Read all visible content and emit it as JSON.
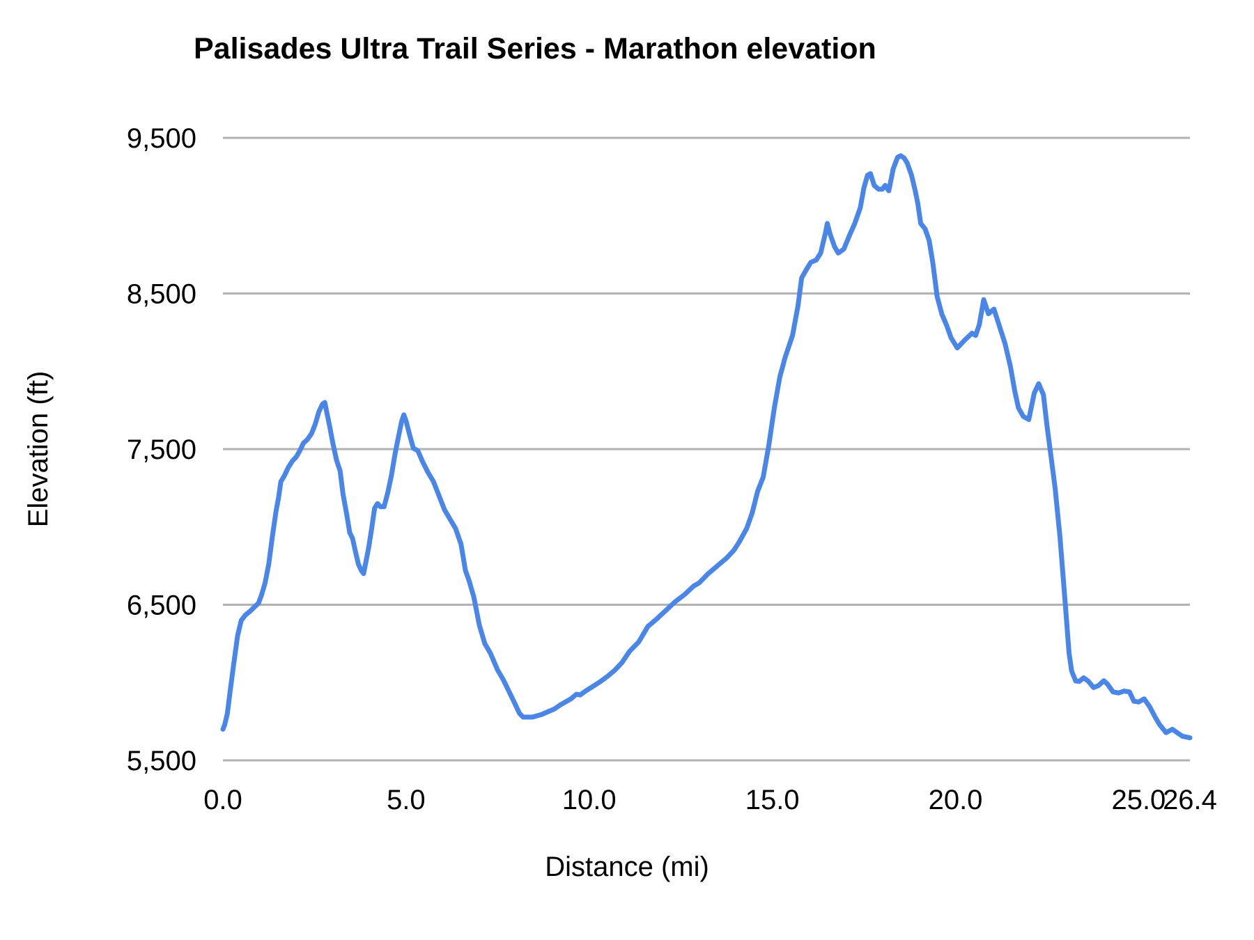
{
  "chart_data": {
    "type": "line",
    "title": "Palisades Ultra Trail Series - Marathon elevation",
    "xlabel": "Distance (mi)",
    "ylabel": "Elevation (ft)",
    "xlim": [
      0,
      26.4
    ],
    "ylim": [
      5500,
      9500
    ],
    "grid": "horizontal",
    "legend": "none",
    "colors": {
      "line": "#4a86e8",
      "gridline": "#b2b2b2",
      "text": "#000000",
      "background": "#ffffff"
    },
    "x_ticks": [
      {
        "value": 0,
        "label": "0.0"
      },
      {
        "value": 5,
        "label": "5.0"
      },
      {
        "value": 10,
        "label": "10.0"
      },
      {
        "value": 15,
        "label": "15.0"
      },
      {
        "value": 20,
        "label": "20.0"
      },
      {
        "value": 25,
        "label": "25.0"
      },
      {
        "value": 26.4,
        "label": "26.4"
      }
    ],
    "y_ticks": [
      {
        "value": 5500,
        "label": "5,500"
      },
      {
        "value": 6500,
        "label": "6,500"
      },
      {
        "value": 7500,
        "label": "7,500"
      },
      {
        "value": 8500,
        "label": "8,500"
      },
      {
        "value": 9500,
        "label": "9,500"
      }
    ],
    "series": [
      {
        "name": "Marathon elevation",
        "points": [
          [
            0.0,
            5700
          ],
          [
            0.05,
            5730
          ],
          [
            0.12,
            5800
          ],
          [
            0.2,
            5950
          ],
          [
            0.3,
            6130
          ],
          [
            0.4,
            6300
          ],
          [
            0.5,
            6400
          ],
          [
            0.62,
            6435
          ],
          [
            0.75,
            6460
          ],
          [
            0.88,
            6490
          ],
          [
            0.97,
            6510
          ],
          [
            1.05,
            6560
          ],
          [
            1.15,
            6640
          ],
          [
            1.25,
            6760
          ],
          [
            1.35,
            6940
          ],
          [
            1.45,
            7100
          ],
          [
            1.52,
            7190
          ],
          [
            1.58,
            7290
          ],
          [
            1.68,
            7330
          ],
          [
            1.78,
            7380
          ],
          [
            1.9,
            7425
          ],
          [
            2.0,
            7450
          ],
          [
            2.1,
            7490
          ],
          [
            2.2,
            7540
          ],
          [
            2.3,
            7560
          ],
          [
            2.42,
            7600
          ],
          [
            2.52,
            7660
          ],
          [
            2.62,
            7740
          ],
          [
            2.72,
            7790
          ],
          [
            2.78,
            7800
          ],
          [
            2.85,
            7720
          ],
          [
            2.92,
            7640
          ],
          [
            3.0,
            7540
          ],
          [
            3.1,
            7430
          ],
          [
            3.2,
            7360
          ],
          [
            3.28,
            7210
          ],
          [
            3.38,
            7080
          ],
          [
            3.46,
            6965
          ],
          [
            3.54,
            6925
          ],
          [
            3.62,
            6840
          ],
          [
            3.7,
            6760
          ],
          [
            3.78,
            6720
          ],
          [
            3.84,
            6700
          ],
          [
            3.9,
            6770
          ],
          [
            3.98,
            6870
          ],
          [
            4.06,
            6990
          ],
          [
            4.14,
            7120
          ],
          [
            4.22,
            7150
          ],
          [
            4.3,
            7130
          ],
          [
            4.4,
            7130
          ],
          [
            4.5,
            7220
          ],
          [
            4.6,
            7330
          ],
          [
            4.7,
            7470
          ],
          [
            4.8,
            7590
          ],
          [
            4.88,
            7680
          ],
          [
            4.94,
            7720
          ],
          [
            5.0,
            7680
          ],
          [
            5.1,
            7590
          ],
          [
            5.2,
            7505
          ],
          [
            5.32,
            7490
          ],
          [
            5.45,
            7420
          ],
          [
            5.6,
            7350
          ],
          [
            5.75,
            7290
          ],
          [
            5.9,
            7200
          ],
          [
            6.05,
            7110
          ],
          [
            6.2,
            7050
          ],
          [
            6.35,
            6990
          ],
          [
            6.5,
            6890
          ],
          [
            6.62,
            6720
          ],
          [
            6.72,
            6655
          ],
          [
            6.85,
            6550
          ],
          [
            7.0,
            6370
          ],
          [
            7.15,
            6250
          ],
          [
            7.3,
            6190
          ],
          [
            7.5,
            6080
          ],
          [
            7.65,
            6020
          ],
          [
            7.9,
            5900
          ],
          [
            8.1,
            5800
          ],
          [
            8.2,
            5778
          ],
          [
            8.45,
            5778
          ],
          [
            8.7,
            5795
          ],
          [
            8.9,
            5815
          ],
          [
            9.05,
            5830
          ],
          [
            9.2,
            5855
          ],
          [
            9.35,
            5875
          ],
          [
            9.5,
            5895
          ],
          [
            9.65,
            5925
          ],
          [
            9.75,
            5920
          ],
          [
            9.9,
            5945
          ],
          [
            10.1,
            5975
          ],
          [
            10.3,
            6005
          ],
          [
            10.5,
            6040
          ],
          [
            10.7,
            6080
          ],
          [
            10.9,
            6130
          ],
          [
            11.1,
            6200
          ],
          [
            11.35,
            6260
          ],
          [
            11.6,
            6360
          ],
          [
            11.85,
            6410
          ],
          [
            12.1,
            6465
          ],
          [
            12.35,
            6520
          ],
          [
            12.6,
            6565
          ],
          [
            12.85,
            6620
          ],
          [
            13.0,
            6640
          ],
          [
            13.25,
            6700
          ],
          [
            13.5,
            6750
          ],
          [
            13.75,
            6800
          ],
          [
            13.95,
            6850
          ],
          [
            14.1,
            6905
          ],
          [
            14.3,
            6990
          ],
          [
            14.45,
            7090
          ],
          [
            14.6,
            7230
          ],
          [
            14.75,
            7320
          ],
          [
            14.9,
            7520
          ],
          [
            15.05,
            7760
          ],
          [
            15.2,
            7960
          ],
          [
            15.35,
            8090
          ],
          [
            15.55,
            8230
          ],
          [
            15.7,
            8420
          ],
          [
            15.8,
            8600
          ],
          [
            15.92,
            8650
          ],
          [
            16.05,
            8700
          ],
          [
            16.2,
            8715
          ],
          [
            16.32,
            8760
          ],
          [
            16.45,
            8890
          ],
          [
            16.5,
            8950
          ],
          [
            16.58,
            8880
          ],
          [
            16.7,
            8800
          ],
          [
            16.8,
            8760
          ],
          [
            16.95,
            8785
          ],
          [
            17.1,
            8870
          ],
          [
            17.25,
            8950
          ],
          [
            17.4,
            9050
          ],
          [
            17.5,
            9180
          ],
          [
            17.6,
            9260
          ],
          [
            17.68,
            9270
          ],
          [
            17.78,
            9195
          ],
          [
            17.9,
            9170
          ],
          [
            18.0,
            9170
          ],
          [
            18.08,
            9195
          ],
          [
            18.18,
            9160
          ],
          [
            18.3,
            9300
          ],
          [
            18.42,
            9375
          ],
          [
            18.5,
            9385
          ],
          [
            18.6,
            9370
          ],
          [
            18.68,
            9340
          ],
          [
            18.8,
            9260
          ],
          [
            18.9,
            9160
          ],
          [
            18.97,
            9080
          ],
          [
            19.05,
            8950
          ],
          [
            19.17,
            8915
          ],
          [
            19.28,
            8840
          ],
          [
            19.38,
            8700
          ],
          [
            19.5,
            8480
          ],
          [
            19.63,
            8365
          ],
          [
            19.75,
            8300
          ],
          [
            19.88,
            8215
          ],
          [
            20.05,
            8150
          ],
          [
            20.25,
            8200
          ],
          [
            20.45,
            8245
          ],
          [
            20.55,
            8230
          ],
          [
            20.65,
            8300
          ],
          [
            20.77,
            8460
          ],
          [
            20.9,
            8370
          ],
          [
            21.05,
            8400
          ],
          [
            21.2,
            8290
          ],
          [
            21.35,
            8180
          ],
          [
            21.5,
            8030
          ],
          [
            21.62,
            7870
          ],
          [
            21.72,
            7765
          ],
          [
            21.85,
            7710
          ],
          [
            22.0,
            7690
          ],
          [
            22.15,
            7860
          ],
          [
            22.27,
            7920
          ],
          [
            22.4,
            7850
          ],
          [
            22.5,
            7645
          ],
          [
            22.62,
            7430
          ],
          [
            22.72,
            7250
          ],
          [
            22.85,
            6940
          ],
          [
            23.0,
            6500
          ],
          [
            23.1,
            6190
          ],
          [
            23.17,
            6075
          ],
          [
            23.28,
            6010
          ],
          [
            23.38,
            6008
          ],
          [
            23.5,
            6030
          ],
          [
            23.62,
            6010
          ],
          [
            23.77,
            5968
          ],
          [
            23.9,
            5980
          ],
          [
            24.05,
            6012
          ],
          [
            24.15,
            5990
          ],
          [
            24.3,
            5940
          ],
          [
            24.45,
            5933
          ],
          [
            24.6,
            5945
          ],
          [
            24.75,
            5940
          ],
          [
            24.87,
            5880
          ],
          [
            25.0,
            5875
          ],
          [
            25.15,
            5895
          ],
          [
            25.3,
            5845
          ],
          [
            25.45,
            5778
          ],
          [
            25.57,
            5730
          ],
          [
            25.75,
            5678
          ],
          [
            25.92,
            5700
          ],
          [
            26.05,
            5678
          ],
          [
            26.2,
            5655
          ],
          [
            26.4,
            5645
          ]
        ]
      }
    ]
  }
}
